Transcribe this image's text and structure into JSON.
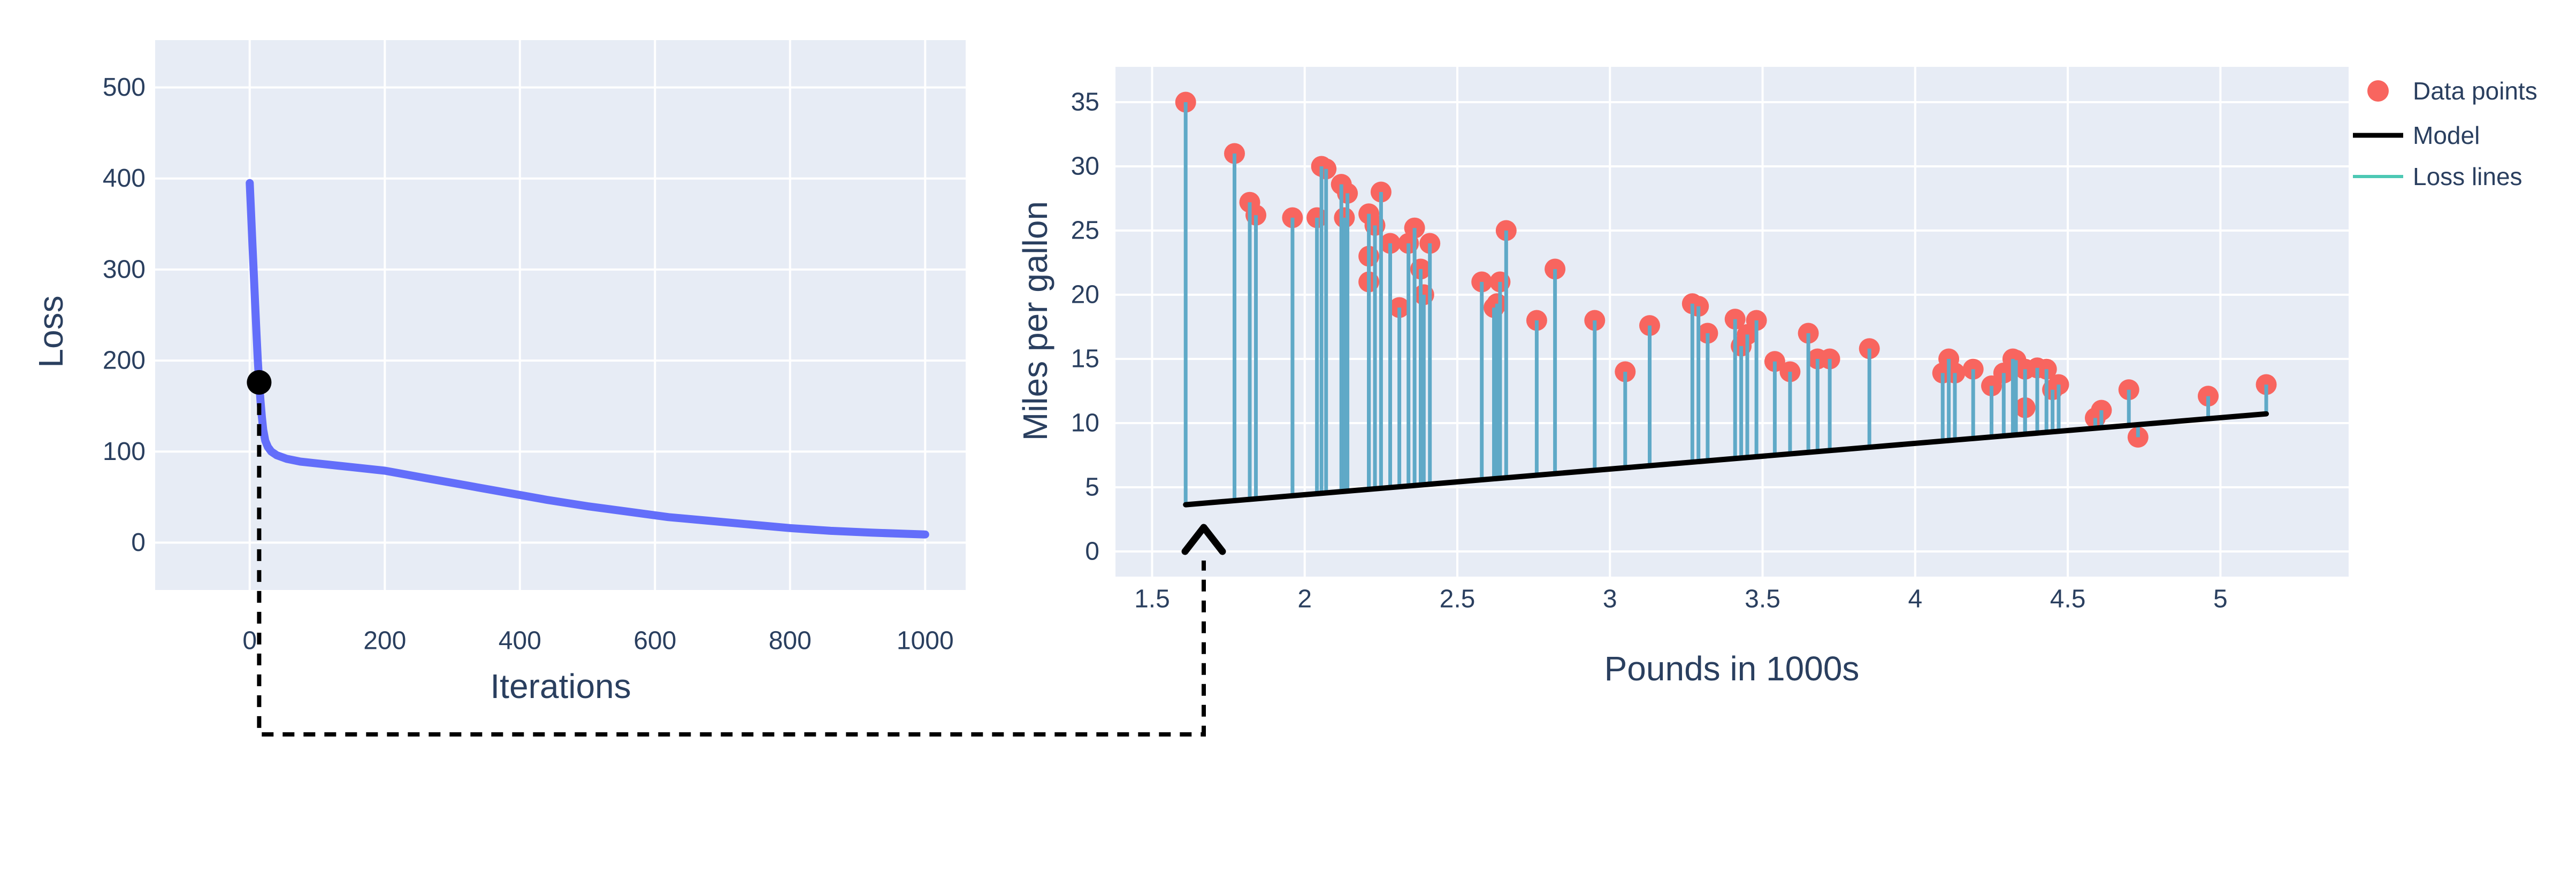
{
  "colors": {
    "page_bg": "#ffffff",
    "plot_bg": "#e7ecf5",
    "grid": "#ffffff",
    "text": "#2a3f5f",
    "loss_curve": "#636efa",
    "annotation_dot": "#000000",
    "data_point": "#f8655f",
    "loss_line": "#5fa9c7",
    "model_line": "#000000",
    "legend_loss_swatch": "#4cc8b4",
    "connector": "#000000"
  },
  "chart_data": [
    {
      "id": "loss_curve_chart",
      "type": "line",
      "title": "",
      "xlabel": "Iterations",
      "ylabel": "Loss",
      "grid": true,
      "xlim": [
        -140,
        1060
      ],
      "ylim": [
        -52,
        552
      ],
      "xticks": {
        "values": [
          0,
          200,
          400,
          600,
          800,
          1000
        ],
        "labels": [
          "0",
          "200",
          "400",
          "600",
          "800",
          "1000"
        ]
      },
      "yticks": {
        "values": [
          0,
          100,
          200,
          300,
          400,
          500
        ],
        "labels": [
          "0",
          "100",
          "200",
          "300",
          "400",
          "500"
        ]
      },
      "series": [
        {
          "name": "loss",
          "x": [
            0,
            2,
            4,
            6,
            8,
            10,
            12,
            14,
            16,
            18,
            20,
            23,
            27,
            32,
            40,
            55,
            75,
            100,
            150,
            200,
            260,
            320,
            380,
            440,
            500,
            560,
            620,
            680,
            740,
            800,
            860,
            920,
            1000
          ],
          "y": [
            395,
            362,
            328,
            296,
            262,
            230,
            200,
            176,
            155,
            138,
            124,
            112,
            105,
            100,
            96,
            92,
            89,
            87,
            83,
            79,
            71,
            63,
            55,
            47,
            40,
            34,
            28,
            24,
            20,
            16,
            13,
            11,
            9
          ]
        }
      ],
      "annotation_dot": {
        "x": 14,
        "y": 176
      }
    },
    {
      "id": "mpg_scatter_chart",
      "type": "scatter",
      "title": "",
      "xlabel": "Pounds in 1000s",
      "ylabel": "Miles per gallon",
      "grid": true,
      "xlim": [
        1.38,
        5.42
      ],
      "ylim": [
        -1.96,
        37.75
      ],
      "xticks": {
        "values": [
          1.5,
          2,
          2.5,
          3,
          3.5,
          4,
          4.5,
          5
        ],
        "labels": [
          "1.5",
          "2",
          "2.5",
          "3",
          "3.5",
          "4",
          "4.5",
          "5"
        ]
      },
      "yticks": {
        "values": [
          0,
          5,
          10,
          15,
          20,
          25,
          30,
          35
        ],
        "labels": [
          "0",
          "5",
          "10",
          "15",
          "20",
          "25",
          "30",
          "35"
        ]
      },
      "points": [
        [
          1.61,
          35
        ],
        [
          1.77,
          31
        ],
        [
          1.82,
          27.2
        ],
        [
          1.84,
          26.2
        ],
        [
          1.96,
          26
        ],
        [
          2.04,
          26
        ],
        [
          2.055,
          30
        ],
        [
          2.07,
          29.8
        ],
        [
          2.12,
          28.6
        ],
        [
          2.13,
          26
        ],
        [
          2.14,
          27.9
        ],
        [
          2.21,
          26.3
        ],
        [
          2.21,
          23
        ],
        [
          2.21,
          21
        ],
        [
          2.23,
          25.4
        ],
        [
          2.25,
          28
        ],
        [
          2.28,
          24
        ],
        [
          2.31,
          19
        ],
        [
          2.34,
          24
        ],
        [
          2.36,
          25.2
        ],
        [
          2.38,
          22
        ],
        [
          2.39,
          20
        ],
        [
          2.41,
          24
        ],
        [
          2.58,
          21
        ],
        [
          2.62,
          19
        ],
        [
          2.63,
          19.3
        ],
        [
          2.64,
          21
        ],
        [
          2.66,
          25
        ],
        [
          2.76,
          18
        ],
        [
          2.82,
          22
        ],
        [
          2.95,
          18
        ],
        [
          3.05,
          14
        ],
        [
          3.13,
          17.6
        ],
        [
          3.27,
          19.3
        ],
        [
          3.29,
          19.1
        ],
        [
          3.32,
          17
        ],
        [
          3.41,
          18.1
        ],
        [
          3.43,
          16
        ],
        [
          3.45,
          16.9
        ],
        [
          3.48,
          18
        ],
        [
          3.54,
          14.8
        ],
        [
          3.59,
          14
        ],
        [
          3.65,
          17
        ],
        [
          3.68,
          15
        ],
        [
          3.72,
          15
        ],
        [
          3.85,
          15.8
        ],
        [
          4.09,
          13.9
        ],
        [
          4.11,
          15
        ],
        [
          4.13,
          13.9
        ],
        [
          4.19,
          14.2
        ],
        [
          4.25,
          12.9
        ],
        [
          4.29,
          13.9
        ],
        [
          4.32,
          15
        ],
        [
          4.33,
          14.9
        ],
        [
          4.36,
          14.2
        ],
        [
          4.36,
          11.2
        ],
        [
          4.4,
          14.3
        ],
        [
          4.43,
          14.2
        ],
        [
          4.45,
          12.6
        ],
        [
          4.47,
          13
        ],
        [
          4.59,
          10.4
        ],
        [
          4.61,
          11
        ],
        [
          4.7,
          12.6
        ],
        [
          4.73,
          8.9
        ],
        [
          4.96,
          12.1
        ],
        [
          5.15,
          13
        ]
      ],
      "model_line": {
        "x": [
          1.61,
          5.15
        ],
        "y": [
          3.64,
          10.72
        ]
      },
      "legend": {
        "position": "top-right-outside",
        "items": [
          {
            "label": "Data points",
            "marker": "dot",
            "color": "#f8655f"
          },
          {
            "label": "Model",
            "marker": "line",
            "color": "#000000"
          },
          {
            "label": "Loss lines",
            "marker": "line",
            "color": "#4cc8b4"
          }
        ]
      }
    }
  ],
  "annotation": {
    "description": "dashed arrow connector from black dot on loss curve to the tallest loss line of the scatter chart"
  }
}
